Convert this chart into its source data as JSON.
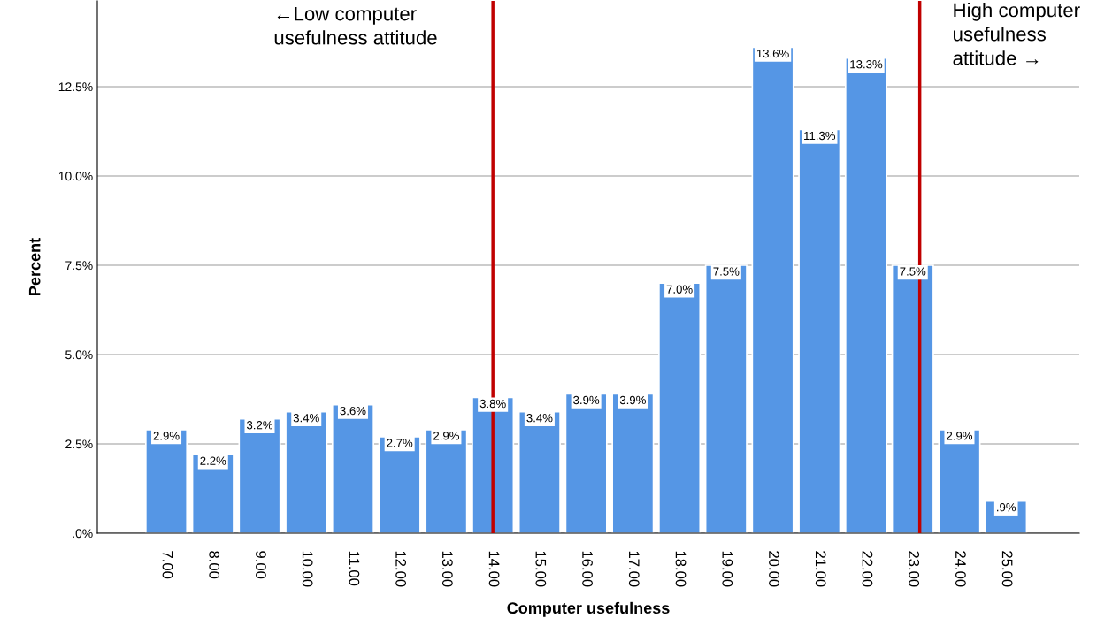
{
  "chart_data": {
    "type": "bar",
    "xlabel": "Computer usefulness",
    "ylabel": "Percent",
    "categories": [
      "7.00",
      "8.00",
      "9.00",
      "10.00",
      "11.00",
      "12.00",
      "13.00",
      "14.00",
      "15.00",
      "16.00",
      "17.00",
      "18.00",
      "19.00",
      "20.00",
      "21.00",
      "22.00",
      "23.00",
      "24.00",
      "25.00"
    ],
    "values": [
      2.9,
      2.2,
      3.2,
      3.4,
      3.6,
      2.7,
      2.9,
      3.8,
      3.4,
      3.9,
      3.9,
      7.0,
      7.5,
      13.6,
      11.3,
      13.3,
      7.5,
      2.9,
      0.9
    ],
    "value_labels": [
      "2.9%",
      "2.2%",
      "3.2%",
      "3.4%",
      "3.6%",
      "2.7%",
      "2.9%",
      "3.8%",
      "3.4%",
      "3.9%",
      "3.9%",
      "7.0%",
      "7.5%",
      "13.6%",
      "11.3%",
      "13.3%",
      "7.5%",
      "2.9%",
      ".9%"
    ],
    "color": "#5596e5",
    "ylim": [
      0,
      14.9
    ],
    "yticks": [
      {
        "value": 0,
        "label": ".0%"
      },
      {
        "value": 2.5,
        "label": "2.5%"
      },
      {
        "value": 5,
        "label": "5.0%"
      },
      {
        "value": 7.5,
        "label": "7.5%"
      },
      {
        "value": 10,
        "label": "10.0%"
      },
      {
        "value": 12.5,
        "label": "12.5%"
      }
    ],
    "grid": "y",
    "ref_lines": [
      {
        "axis": "x",
        "value": "14.00",
        "label": "←Low computer\nusefulness attitude",
        "color": "#c00000"
      },
      {
        "axis": "x",
        "value": "23.00",
        "label": "High computer\nusefulness\nattitude →",
        "color": "#c00000"
      }
    ]
  }
}
